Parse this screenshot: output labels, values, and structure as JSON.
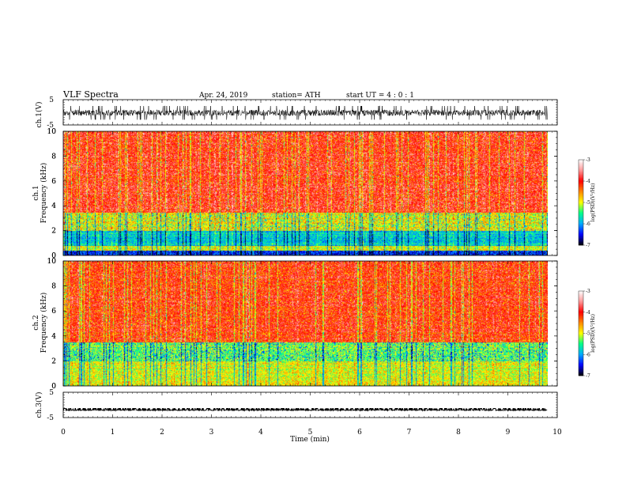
{
  "header": {
    "title": "VLF  Spectra",
    "date": "Apr. 24, 2019",
    "station": "station= ATH",
    "start": "start  UT  =   4  : 0  : 1"
  },
  "chart_data": [
    {
      "type": "line",
      "panel": "ch1-waveform",
      "ylabel": "ch.1(V)",
      "ylim": [
        -5,
        5
      ],
      "ytick_labels": [
        "5",
        "-5"
      ],
      "xlim": [
        0,
        10
      ],
      "data_extent_min": 9.8,
      "series": [
        {
          "values_range": [
            -2.5,
            2.5
          ],
          "mean": -0.2
        }
      ]
    },
    {
      "type": "heatmap",
      "panel": "ch1-spectrogram",
      "ylabel": "ch.1\nFrequency (kHz)",
      "ylim": [
        0,
        10
      ],
      "ytick_labels": [
        "0",
        "2",
        "4",
        "6",
        "8",
        "10"
      ],
      "xlim": [
        0,
        10
      ],
      "data_extent_min": 9.8,
      "colorbar": {
        "label": "log(PSD)(V²/Hz)",
        "range": [
          -7,
          -3
        ],
        "tick_labels": [
          "-3",
          "-4",
          "-5",
          "-6",
          "-7"
        ]
      },
      "bands_khz": {
        "low_blue": [
          0.8,
          2.0
        ],
        "green": [
          2.0,
          3.5
        ],
        "upper_red": [
          3.5,
          10
        ]
      }
    },
    {
      "type": "heatmap",
      "panel": "ch2-spectrogram",
      "ylabel": "ch.2\nFrequency (kHz)",
      "ylim": [
        0,
        10
      ],
      "ytick_labels": [
        "0",
        "2",
        "4",
        "6",
        "8",
        "10"
      ],
      "xlim": [
        0,
        10
      ],
      "data_extent_min": 9.8,
      "colorbar": {
        "label": "log(PSD)(V²/Hz)",
        "range": [
          -7,
          -3
        ],
        "tick_labels": [
          "-3",
          "-4",
          "-5",
          "-6",
          "-7"
        ]
      },
      "bands_khz": {
        "low_green": [
          0.0,
          2.0
        ],
        "blue_green": [
          2.0,
          3.5
        ],
        "upper_red": [
          3.5,
          10
        ]
      }
    },
    {
      "type": "line",
      "panel": "ch3-waveform",
      "ylabel": "ch.3(V)",
      "ylim": [
        -5,
        5
      ],
      "ytick_labels": [
        "5",
        "-5"
      ],
      "xlabel": "Time  (min)",
      "xlim": [
        0,
        10
      ],
      "xtick_labels": [
        "0",
        "1",
        "2",
        "3",
        "4",
        "5",
        "6",
        "7",
        "8",
        "9",
        "10"
      ],
      "data_extent_min": 9.8,
      "series": [
        {
          "baseline": -2.0,
          "pulse_height": 0.6,
          "pulse_period_min": 0.1
        }
      ]
    }
  ],
  "colors": {
    "colormap": [
      "#000000",
      "#0000ff",
      "#00aaff",
      "#00ff88",
      "#ffff00",
      "#ff8800",
      "#ff0000",
      "#ff9999",
      "#ffffff"
    ]
  }
}
